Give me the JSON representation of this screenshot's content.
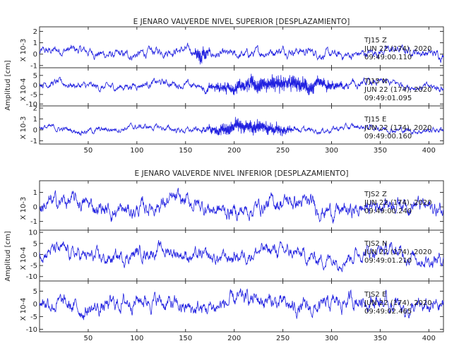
{
  "colors": {
    "trace": "#2020e0",
    "frame": "#333333",
    "text": "#222222"
  },
  "chart_data": [
    {
      "type": "line",
      "title": "E JENARO VALVERDE NIVEL SUPERIOR [DESPLAZAMIENTO]",
      "ylabel": "Amplitud [cm]",
      "x_ticks": [
        50,
        100,
        150,
        200,
        250,
        300,
        350,
        400
      ],
      "xlim": [
        0,
        415
      ],
      "panels": [
        {
          "name": "TJ15 Z",
          "scale_label": "X 10-3",
          "y_ticks": [
            -1,
            0,
            1,
            2
          ],
          "ylim": [
            -1.2,
            2.4
          ],
          "amp": 0.5,
          "burst": [
            {
              "start": 158,
              "end": 175,
              "amp": 1.6
            }
          ],
          "annotation": [
            "TJ15 Z",
            "JUN 22 (174), 2020",
            "09:49:00.110"
          ]
        },
        {
          "name": "TJ15 N",
          "scale_label": "X 10-4",
          "y_ticks": [
            -10,
            -5,
            0,
            5
          ],
          "ylim": [
            -11,
            9
          ],
          "amp": 2.5,
          "burst": [
            {
              "start": 158,
              "end": 330,
              "amp": 9
            }
          ],
          "annotation": [
            "TJ15 N",
            "JUN 22 (174), 2020",
            "09:49:01.095"
          ]
        },
        {
          "name": "TJ15 E",
          "scale_label": "X 10-3",
          "y_ticks": [
            -1,
            0,
            1,
            2
          ],
          "ylim": [
            -1.3,
            2.2
          ],
          "amp": 0.35,
          "burst": [
            {
              "start": 160,
              "end": 270,
              "amp": 1.5
            }
          ],
          "annotation": [
            "TJ15 E",
            "JUN 22 (174), 2020",
            "09:49:00.160"
          ]
        }
      ]
    },
    {
      "type": "line",
      "title": "E JENARO VALVERDE NIVEL INFERIOR [DESPLAZAMIENTO]",
      "ylabel": "Amplitud [cm]",
      "x_ticks": [
        50,
        100,
        150,
        200,
        250,
        300,
        350,
        400
      ],
      "xlim": [
        0,
        415
      ],
      "panels": [
        {
          "name": "TJS2 Z",
          "scale_label": "X 10-3",
          "y_ticks": [
            -1,
            0,
            1
          ],
          "ylim": [
            -1.6,
            1.8
          ],
          "amp": 0.7,
          "burst": [],
          "annotation": [
            "TJS2 Z",
            "JUN 22 (174), 2020",
            "09:49:00.240"
          ]
        },
        {
          "name": "TJS2 N",
          "scale_label": "X 10-4",
          "y_ticks": [
            -10,
            -5,
            0,
            5,
            10
          ],
          "ylim": [
            -12,
            11
          ],
          "amp": 4,
          "burst": [],
          "annotation": [
            "TJS2 N",
            "JUN 22 (174), 2020",
            "09:49:01.210"
          ]
        },
        {
          "name": "TJS2 E",
          "scale_label": "X 10-4",
          "y_ticks": [
            -10,
            -5,
            0,
            5
          ],
          "ylim": [
            -11,
            9
          ],
          "amp": 4,
          "burst": [],
          "annotation": [
            "TJS2 E",
            "JUN 22 (174), 2020",
            "09:49:02.465"
          ]
        }
      ]
    }
  ]
}
